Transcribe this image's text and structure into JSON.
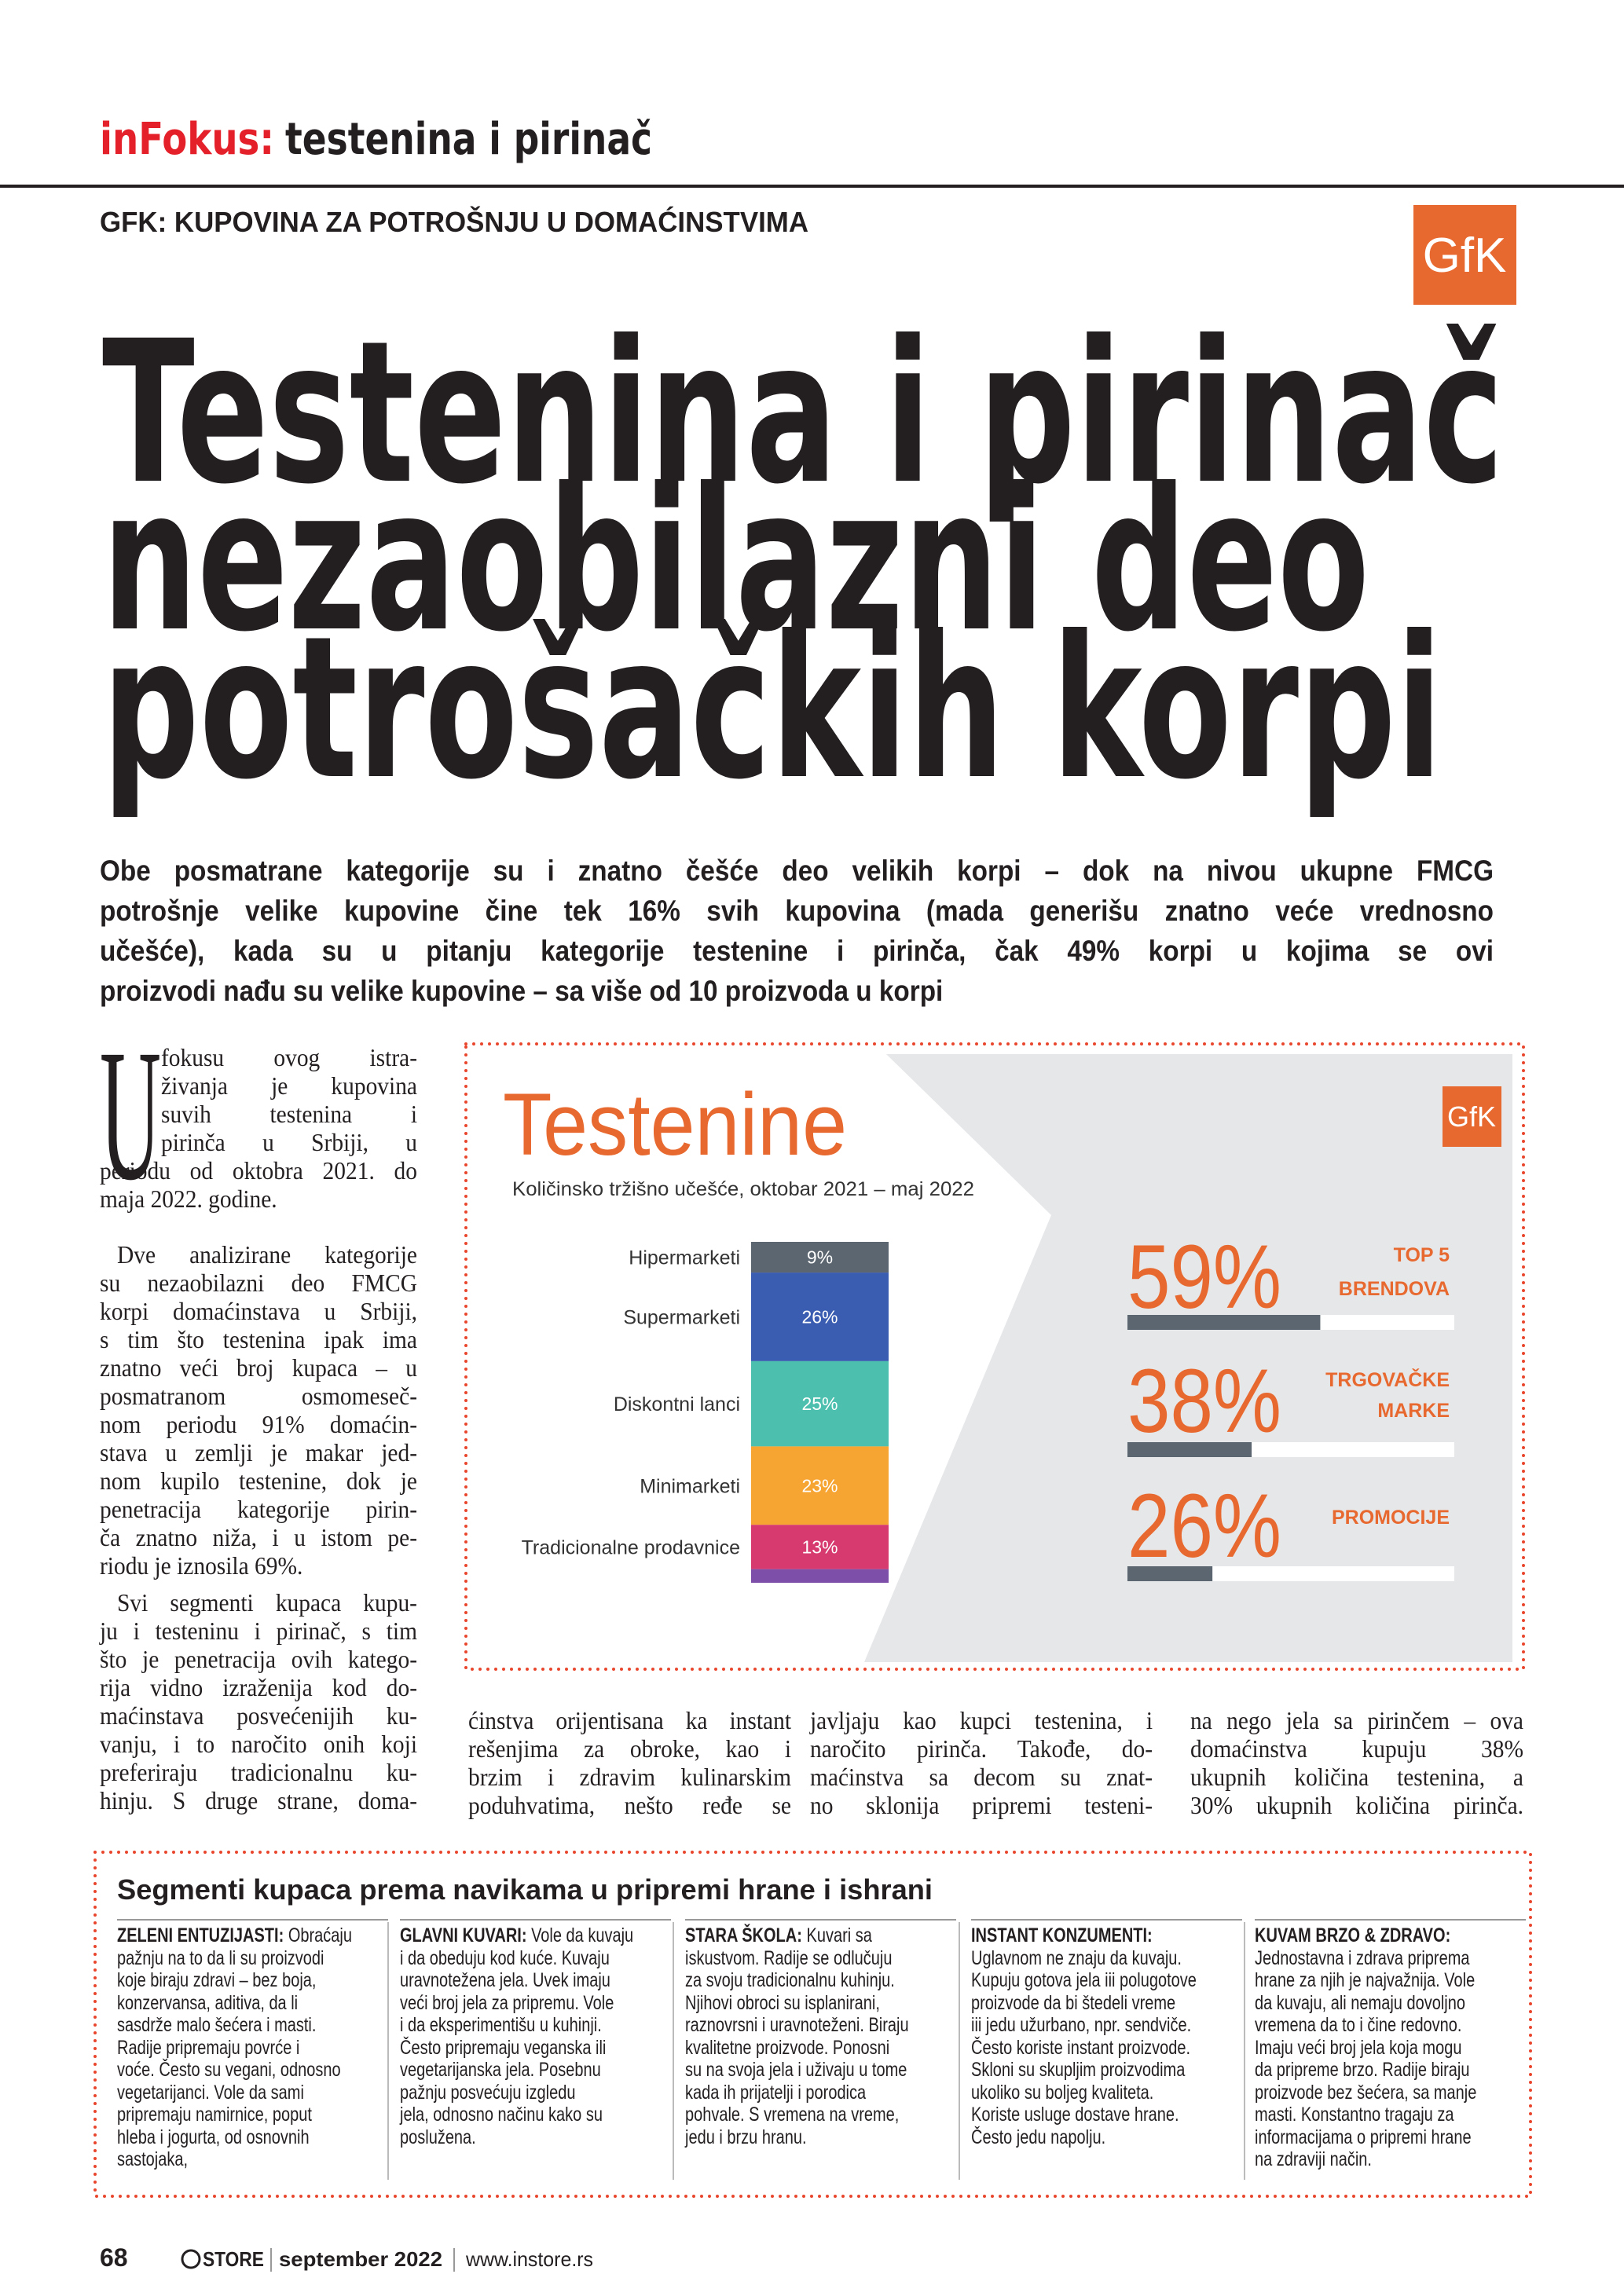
{
  "header": {
    "section_label": "inFokus:",
    "section_topic": "testenina i pirinač",
    "kicker": "GFK: KUPOVINA ZA POTROŠNJU U DOMAĆINSTVIMA",
    "logo": "GfK"
  },
  "headline": {
    "lines": [
      "Testenina i pirinač",
      "nezaobilazni deo",
      "potrošačkih korpi"
    ]
  },
  "lead": {
    "lines": [
      "Obe posmatrane kategorije su i znatno češće deo velikih korpi – dok na nivou ukupne FMCG",
      "potrošnje velike kupovine čine tek 16% svih kupovina (mada generišu znatno veće vrednosno",
      "učešće), kada su u pitanju kategorije testenine i pirinča, čak 49% korpi u kojima se ovi",
      "proizvodi nađu su velike kupovine – sa više od 10 proizvoda u korpi"
    ]
  },
  "body": {
    "drop_cap": "U",
    "columns": [
      {
        "paragraphs": [
          [
            "fokusu ovog istra-",
            "živanja je kupovina",
            "suvih testenina i",
            "pirinča u Srbiji, u",
            "periodu od oktobra 2021. do",
            "maja 2022. godine."
          ],
          [
            "Dve analizirane kategorije",
            "su nezaobilazni deo FMCG",
            "korpi domaćinstava u Srbiji,",
            "s tim što testenina ipak ima",
            "znatno veći broj kupaca – u",
            "posmatranom osmomeseč-",
            "nom periodu 91% domaćin-",
            "stava u zemlji je makar jed-",
            "nom kupilo testenine, dok je",
            "penetracija kategorije pirin-",
            "ča znatno niža, i u istom pe-",
            "riodu je iznosila 69%."
          ],
          [
            "Svi segmenti kupaca kupu-",
            "ju i testeninu i pirinač, s tim",
            "što je penetracija ovih katego-",
            "rija vidno izraženija kod do-",
            "maćinstava posvećenijih ku-",
            "vanju, i to naročito onih koji",
            "preferiraju tradicionalnu ku-",
            "hinju. S druge strane, doma-"
          ]
        ]
      },
      {
        "paragraphs": [
          [
            "ćinstva orijentisana ka instant",
            "rešenjima za obroke, kao i",
            "brzim i zdravim kulinarskim",
            "poduhvatima, nešto ređe se"
          ]
        ]
      },
      {
        "paragraphs": [
          [
            "javljaju kao kupci testenina, i",
            "naročito pirinča. Takođe, do-",
            "maćinstva sa decom su znat-",
            "no sklonija pripremi testeni-"
          ]
        ]
      },
      {
        "paragraphs": [
          [
            "na nego jela sa pirinčem – ova",
            "domaćinstva kupuju 38%",
            "ukupnih količina testenina, a",
            "30% ukupnih količina pirinča."
          ]
        ]
      }
    ]
  },
  "chart_data": [
    {
      "type": "stacked-bar",
      "title": "Testenine",
      "subtitle": "Količinsko tržišno učešće, oktobar 2021 – maj 2022",
      "logo": "GfK",
      "categories": [
        "Hipermarketi",
        "Supermarketi",
        "Diskontni lanci",
        "Minimarketi",
        "Tradicionalne prodavnice",
        null
      ],
      "values": [
        9,
        26,
        25,
        23,
        13,
        4
      ],
      "value_labels": [
        "9%",
        "26%",
        "25%",
        "23%",
        "13%",
        null
      ],
      "colors": [
        "#5b6670",
        "#3b5db1",
        "#4dbfae",
        "#f6a532",
        "#d63a6e",
        "#7d4fa8"
      ],
      "ylim": [
        0,
        100
      ]
    },
    {
      "type": "progress",
      "categories": [
        [
          "TOP 5",
          "BRENDOVA"
        ],
        [
          "TRGOVAČKE",
          "MARKE"
        ],
        [
          "PROMOCIJE"
        ]
      ],
      "values": [
        59,
        38,
        26
      ],
      "value_labels": [
        "59%",
        "38%",
        "26%"
      ],
      "xlim": [
        0,
        100
      ],
      "color": "#e8692f",
      "bar_color": "#5b6670",
      "track_color": "#ffffff"
    }
  ],
  "sidebar": {
    "title": "Segmenti kupaca prema navikama u pripremi hrane i ishrani",
    "segments": [
      {
        "heading": "ZELENI ENTUZIJASTI:",
        "heading_own_line": false,
        "lines": [
          "Obraćaju",
          "pažnju na to da li su proizvodi",
          "koje biraju zdravi – bez boja,",
          "konzervansa, aditiva, da li",
          "sasdrže malo šećera i masti.",
          "Radije pripremaju povrće i",
          "voće. Često su vegani, odnosno",
          "vegetarijanci. Vole da sami",
          "pripremaju namirnice, poput",
          "hleba i jogurta, od osnovnih",
          "sastojaka,"
        ]
      },
      {
        "heading": "GLAVNI KUVARI:",
        "heading_own_line": false,
        "lines": [
          "Vole da kuvaju",
          "i da obeduju kod kuće. Kuvaju",
          "uravnotežena jela. Uvek imaju",
          "veći broj jela za pripremu. Vole",
          "i da eksperimentišu u kuhinji.",
          "Često pripremaju veganska ili",
          "vegetarijanska jela. Posebnu",
          "pažnju posvećuju izgledu",
          "jela, odnosno načinu kako su",
          "poslužena."
        ]
      },
      {
        "heading": "STARA ŠKOLA:",
        "heading_own_line": false,
        "lines": [
          "Kuvari sa",
          "iskustvom. Radije se odlučuju",
          "za svoju tradicionalnu kuhinju.",
          "Njihovi obroci su isplanirani,",
          "raznovrsni i uravnoteženi. Biraju",
          "kvalitetne proizvode. Ponosni",
          "su na svoja jela i uživaju u tome",
          "kada ih prijatelji i porodica",
          "pohvale. S vremena na vreme,",
          "jedu i brzu hranu."
        ]
      },
      {
        "heading": "INSTANT KONZUMENTI:",
        "heading_own_line": true,
        "lines": [
          "Uglavnom ne znaju da kuvaju.",
          "Kupuju gotova jela iii polugotove",
          "proizvode da bi štedeli vreme",
          "iii jedu užurbano, npr. sendviče.",
          "Često koriste instant proizvode.",
          "Skloni su skupljim proizvodima",
          "ukoliko su boljeg kvaliteta.",
          "Koriste usluge dostave hrane.",
          "Često jedu napolju."
        ]
      },
      {
        "heading": "KUVAM BRZO & ZDRAVO:",
        "heading_own_line": true,
        "lines": [
          "Jednostavna i zdrava priprema",
          "hrane za njih je najvažnija. Vole",
          "da kuvaju, ali nemaju dovoljno",
          "vremena da to i čine redovno.",
          "Imaju veći broj jela koja mogu",
          "da pripreme brzo. Radije biraju",
          "proizvode bez šećera, sa manje",
          "masti. Konstantno tragaju za",
          "informacijama o pripremi hrane",
          "na zdraviji način."
        ]
      }
    ]
  },
  "footer": {
    "page": 68,
    "brand": "STORE",
    "issue": "september 2022",
    "url": "www.instore.rs"
  }
}
